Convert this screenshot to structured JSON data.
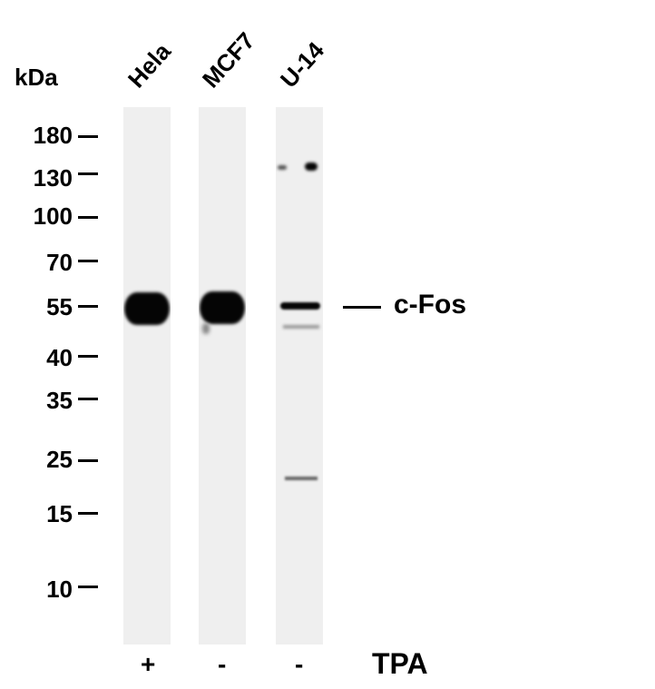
{
  "unit_label": "kDa",
  "markers": [
    "180",
    "130",
    "100",
    "70",
    "55",
    "40",
    "35",
    "25",
    "15",
    "10"
  ],
  "lanes": [
    {
      "name": "Hela",
      "tpa": "+"
    },
    {
      "name": "MCF7",
      "tpa": "-"
    },
    {
      "name": "U-14",
      "tpa": "-"
    }
  ],
  "target_label": "c-Fos",
  "treatment_label": "TPA"
}
